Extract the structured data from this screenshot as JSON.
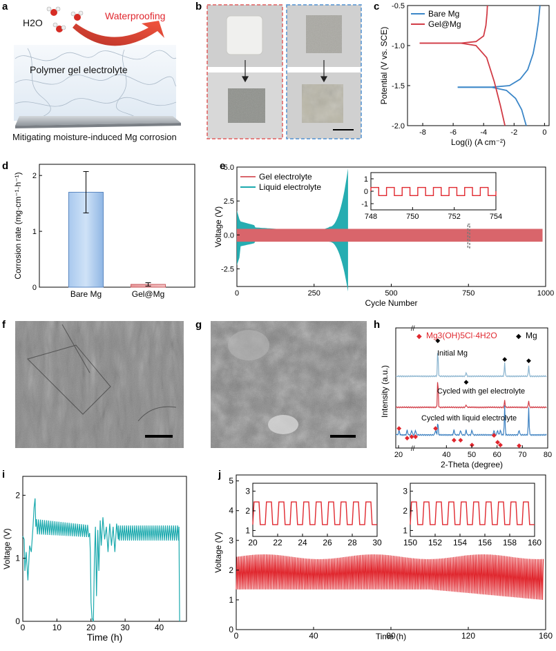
{
  "panels": {
    "a": {
      "label": "a",
      "h2o": "H2O",
      "waterproofing": "Waterproofing",
      "gel": "Polymer gel electrolyte",
      "caption": "Mitigating moisture-induced Mg corrosion"
    },
    "b": {
      "label": "b"
    },
    "c": {
      "label": "c"
    },
    "d": {
      "label": "d"
    },
    "e": {
      "label": "e"
    },
    "f": {
      "label": "f"
    },
    "g": {
      "label": "g"
    },
    "h": {
      "label": "h"
    },
    "i": {
      "label": "i"
    },
    "j": {
      "label": "j"
    }
  },
  "colors": {
    "blue": "#3a86c8",
    "red": "#d13b45",
    "teal": "#1aa9ad",
    "pink": "#d9656b",
    "cred": "#e0272e"
  },
  "chart_data": [
    {
      "id": "c",
      "type": "line",
      "xlabel": "Log(i) (A cm⁻²)",
      "ylabel": "Potential (V vs. SCE)",
      "xlim": [
        -9,
        0.3
      ],
      "ylim": [
        -2.0,
        -0.5
      ],
      "xticks": [
        -8,
        -6,
        -4,
        -2,
        0
      ],
      "yticks": [
        -0.5,
        -1.0,
        -1.5,
        -2.0
      ],
      "yticklabels": [
        "-0.5",
        "-1.0",
        "-1.5",
        "-2.0"
      ],
      "legend": "top-left",
      "series": [
        {
          "name": "Bare Mg",
          "points": [
            [
              -5.7,
              -1.52
            ],
            [
              -3.5,
              -1.52
            ],
            [
              -2.3,
              -1.5
            ],
            [
              -1.6,
              -1.42
            ],
            [
              -1.1,
              -1.3
            ],
            [
              -0.75,
              -1.1
            ],
            [
              -0.55,
              -0.9
            ],
            [
              -0.4,
              -0.7
            ],
            [
              -0.3,
              -0.5
            ]
          ]
        },
        {
          "name": "Bare Mg",
          "points": [
            [
              -5.7,
              -1.52
            ],
            [
              -3.5,
              -1.52
            ],
            [
              -2.5,
              -1.56
            ],
            [
              -1.9,
              -1.66
            ],
            [
              -1.5,
              -1.8
            ],
            [
              -1.2,
              -2.0
            ]
          ]
        },
        {
          "name": "Gel@Mg",
          "points": [
            [
              -8.2,
              -0.97
            ],
            [
              -5.5,
              -0.97
            ],
            [
              -4.5,
              -0.95
            ],
            [
              -4.0,
              -0.88
            ],
            [
              -3.85,
              -0.75
            ],
            [
              -3.78,
              -0.6
            ],
            [
              -3.75,
              -0.5
            ]
          ]
        },
        {
          "name": "Gel@Mg",
          "points": [
            [
              -8.2,
              -0.97
            ],
            [
              -5.5,
              -0.97
            ],
            [
              -4.5,
              -1.0
            ],
            [
              -3.8,
              -1.15
            ],
            [
              -3.3,
              -1.45
            ],
            [
              -2.9,
              -1.75
            ],
            [
              -2.6,
              -2.0
            ]
          ]
        }
      ]
    },
    {
      "id": "d",
      "type": "bar",
      "categories": [
        "Bare Mg",
        "Gel@Mg"
      ],
      "values": [
        1.7,
        0.05
      ],
      "errors": [
        0.37,
        0.03
      ],
      "ylabel": "Corrosion rate (mg·cm⁻¹·h⁻¹)",
      "ylim": [
        0,
        2.2
      ],
      "yticks": [
        0,
        1,
        2
      ]
    },
    {
      "id": "e",
      "type": "line",
      "xlabel": "Cycle Number",
      "ylabel": "Voltage (V)",
      "xlim": [
        0,
        1000
      ],
      "ylim": [
        -3.8,
        5.0
      ],
      "xticks": [
        0,
        250,
        500,
        750,
        1000
      ],
      "yticks": [
        -2.5,
        0.0,
        2.5,
        5.0
      ],
      "yticklabels": [
        "-2.5",
        "0.0",
        "2.5",
        "5.0"
      ],
      "legend": "top-left",
      "series": [
        {
          "name": "Gel electrolyte"
        },
        {
          "name": "Liquid electrolyte"
        }
      ],
      "inset": {
        "xlim": [
          748,
          754
        ],
        "ylim": [
          -1.5,
          1.5
        ],
        "xticks": [
          748,
          750,
          752,
          754
        ],
        "yticks": [
          -1,
          0,
          1
        ]
      }
    },
    {
      "id": "h",
      "type": "line",
      "xlabel": "2-Theta (degree)",
      "ylabel": "Intensity (a.u.)",
      "xlim": [
        20,
        80
      ],
      "xticks": [
        20,
        40,
        50,
        60,
        70,
        80
      ],
      "legend": "top",
      "legend_items": [
        "Mg3(OH)5Cl·4H2O",
        "Mg"
      ],
      "series": [
        {
          "name": "Initial Mg"
        },
        {
          "name": "Cycled with gel electrolyte"
        },
        {
          "name": "Cycled with liquid electrolyte"
        }
      ],
      "peaks_mg": [
        36.6,
        47.8,
        63.0,
        72.5
      ],
      "peaks_hydroxide": [
        21.3,
        24.5,
        26.3,
        27.8,
        35.7,
        43.0,
        45.6,
        50.1,
        58.8,
        60.2,
        61.3,
        68.7
      ]
    },
    {
      "id": "i",
      "type": "line",
      "xlabel": "Time (h)",
      "ylabel": "Voltage (V)",
      "xlim": [
        0,
        48
      ],
      "ylim": [
        0,
        2.3
      ],
      "xticks": [
        0,
        10,
        20,
        30,
        40
      ],
      "yticks": [
        0,
        1,
        2
      ]
    },
    {
      "id": "j",
      "type": "line",
      "xlabel": "Time (h)",
      "ylabel": "Voltage (V)",
      "xlim": [
        0,
        160
      ],
      "ylim": [
        0,
        5.2
      ],
      "xticks": [
        0,
        40,
        80,
        120,
        160
      ],
      "yticks": [
        0,
        1,
        2,
        3,
        4,
        5
      ],
      "insets": [
        {
          "xlim": [
            20,
            30
          ],
          "xticks": [
            20,
            22,
            24,
            26,
            28,
            30
          ],
          "yticks": [
            1,
            2,
            3
          ]
        },
        {
          "xlim": [
            150,
            160
          ],
          "xticks": [
            150,
            152,
            154,
            156,
            158,
            160
          ],
          "yticks": [
            1,
            2,
            3
          ]
        }
      ]
    }
  ]
}
